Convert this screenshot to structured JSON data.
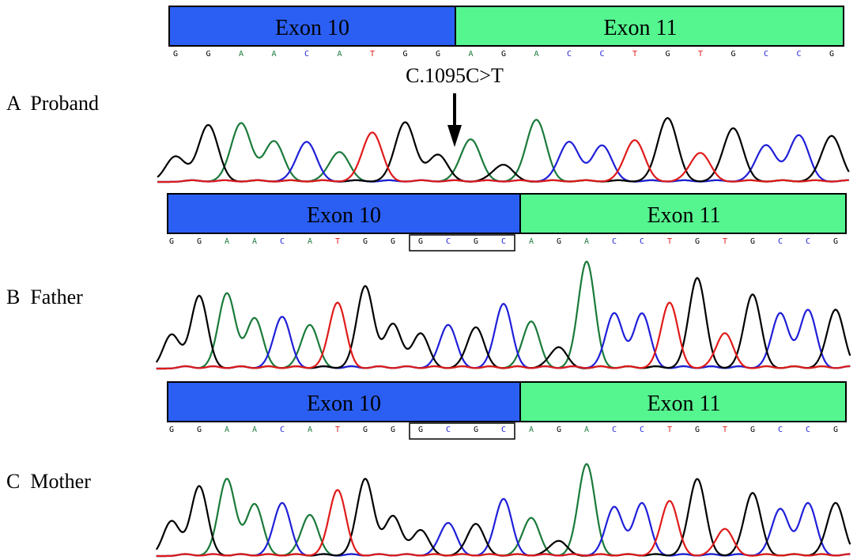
{
  "colors": {
    "exon10": "#2b5ff4",
    "exon11": "#55f590",
    "A": "#1a7a3a",
    "C": "#1f1fd9",
    "G": "#000000",
    "T": "#e01a1a"
  },
  "mutation": {
    "label": "C.1095C>T",
    "arrow": "down-arrow-icon"
  },
  "panels": [
    {
      "label": "A  Proband",
      "exons": [
        "Exon 10",
        "Exon 11"
      ],
      "sequence": [
        "G",
        "G",
        "A",
        "A",
        "C",
        "A",
        "T",
        "G",
        "G",
        "A",
        "G",
        "A",
        "C",
        "C",
        "T",
        "G",
        "T",
        "G",
        "C",
        "C",
        "G"
      ],
      "boxed": [],
      "peaks": [
        {
          "base": "G",
          "h": 0.3
        },
        {
          "base": "G",
          "h": 0.67
        },
        {
          "base": "A",
          "h": 0.69
        },
        {
          "base": "A",
          "h": 0.48
        },
        {
          "base": "C",
          "h": 0.47
        },
        {
          "base": "A",
          "h": 0.35
        },
        {
          "base": "T",
          "h": 0.58
        },
        {
          "base": "G",
          "h": 0.7
        },
        {
          "base": "G",
          "h": 0.32
        },
        {
          "base": "A",
          "h": 0.5
        },
        {
          "base": "G",
          "h": 0.2
        },
        {
          "base": "A",
          "h": 0.73
        },
        {
          "base": "C",
          "h": 0.47
        },
        {
          "base": "C",
          "h": 0.43
        },
        {
          "base": "T",
          "h": 0.49
        },
        {
          "base": "G",
          "h": 0.75
        },
        {
          "base": "T",
          "h": 0.34
        },
        {
          "base": "G",
          "h": 0.63
        },
        {
          "base": "C",
          "h": 0.43
        },
        {
          "base": "C",
          "h": 0.55
        },
        {
          "base": "G",
          "h": 0.54
        }
      ]
    },
    {
      "label": "B  Father",
      "exons": [
        "Exon 10",
        "Exon 11"
      ],
      "sequence": [
        "G",
        "G",
        "A",
        "A",
        "C",
        "A",
        "T",
        "G",
        "G",
        "G",
        "C",
        "G",
        "C",
        "A",
        "G",
        "A",
        "C",
        "C",
        "T",
        "G",
        "T",
        "G",
        "C",
        "C",
        "G"
      ],
      "boxed": [
        9,
        10,
        11,
        12
      ],
      "peaks": [
        {
          "base": "G",
          "h": 0.29
        },
        {
          "base": "G",
          "h": 0.62
        },
        {
          "base": "A",
          "h": 0.64
        },
        {
          "base": "A",
          "h": 0.43
        },
        {
          "base": "C",
          "h": 0.44
        },
        {
          "base": "A",
          "h": 0.37
        },
        {
          "base": "T",
          "h": 0.56
        },
        {
          "base": "G",
          "h": 0.7
        },
        {
          "base": "G",
          "h": 0.38
        },
        {
          "base": "G",
          "h": 0.3
        },
        {
          "base": "C",
          "h": 0.37
        },
        {
          "base": "G",
          "h": 0.35
        },
        {
          "base": "C",
          "h": 0.55
        },
        {
          "base": "A",
          "h": 0.4
        },
        {
          "base": "G",
          "h": 0.18
        },
        {
          "base": "A",
          "h": 0.91
        },
        {
          "base": "C",
          "h": 0.47
        },
        {
          "base": "C",
          "h": 0.47
        },
        {
          "base": "T",
          "h": 0.56
        },
        {
          "base": "G",
          "h": 0.77
        },
        {
          "base": "T",
          "h": 0.3
        },
        {
          "base": "G",
          "h": 0.63
        },
        {
          "base": "C",
          "h": 0.47
        },
        {
          "base": "C",
          "h": 0.5
        },
        {
          "base": "G",
          "h": 0.5
        }
      ]
    },
    {
      "label": "C  Mother",
      "exons": [
        "Exon 10",
        "Exon 11"
      ],
      "sequence": [
        "G",
        "G",
        "A",
        "A",
        "C",
        "A",
        "T",
        "G",
        "G",
        "G",
        "C",
        "G",
        "C",
        "A",
        "G",
        "A",
        "C",
        "C",
        "T",
        "G",
        "T",
        "G",
        "C",
        "C",
        "G"
      ],
      "boxed": [
        9,
        10,
        11,
        12
      ],
      "peaks": [
        {
          "base": "G",
          "h": 0.35
        },
        {
          "base": "G",
          "h": 0.7
        },
        {
          "base": "A",
          "h": 0.77
        },
        {
          "base": "A",
          "h": 0.52
        },
        {
          "base": "C",
          "h": 0.53
        },
        {
          "base": "A",
          "h": 0.41
        },
        {
          "base": "T",
          "h": 0.66
        },
        {
          "base": "G",
          "h": 0.77
        },
        {
          "base": "G",
          "h": 0.4
        },
        {
          "base": "G",
          "h": 0.26
        },
        {
          "base": "C",
          "h": 0.33
        },
        {
          "base": "G",
          "h": 0.32
        },
        {
          "base": "C",
          "h": 0.57
        },
        {
          "base": "A",
          "h": 0.38
        },
        {
          "base": "G",
          "h": 0.15
        },
        {
          "base": "A",
          "h": 0.92
        },
        {
          "base": "C",
          "h": 0.49
        },
        {
          "base": "C",
          "h": 0.53
        },
        {
          "base": "T",
          "h": 0.55
        },
        {
          "base": "G",
          "h": 0.77
        },
        {
          "base": "T",
          "h": 0.27
        },
        {
          "base": "G",
          "h": 0.63
        },
        {
          "base": "C",
          "h": 0.47
        },
        {
          "base": "C",
          "h": 0.53
        },
        {
          "base": "G",
          "h": 0.53
        }
      ]
    }
  ]
}
